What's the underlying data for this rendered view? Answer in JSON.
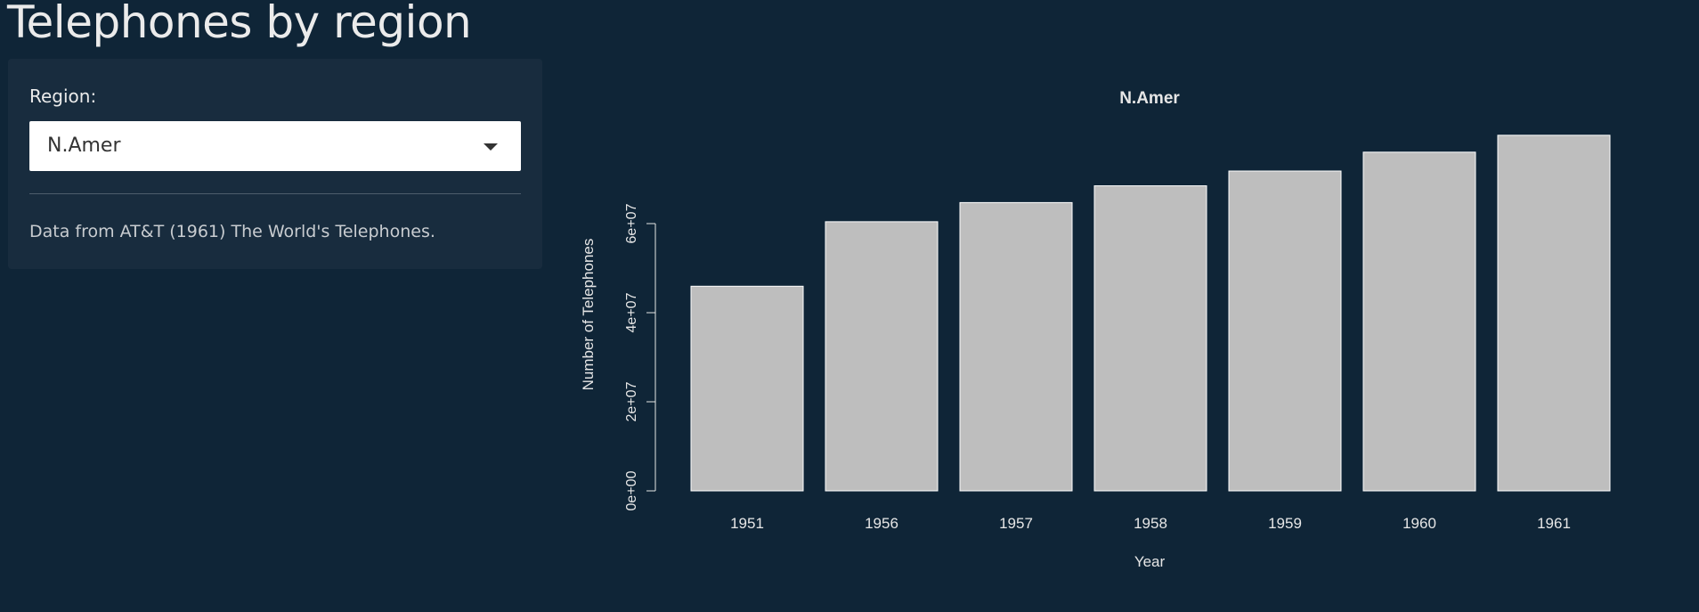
{
  "page": {
    "title": "Telephones by region"
  },
  "sidebar": {
    "region_label": "Region:",
    "selected_region": "N.Amer",
    "help_text": "Data from AT&T (1961) The World's Telephones."
  },
  "chart_data": {
    "type": "bar",
    "title": "N.Amer",
    "xlabel": "Year",
    "ylabel": "Number of Telephones",
    "categories": [
      "1951",
      "1956",
      "1957",
      "1958",
      "1959",
      "1960",
      "1961"
    ],
    "values": [
      45939000,
      60423000,
      64721000,
      68484000,
      71799000,
      76036000,
      79831000
    ],
    "ylim": [
      0,
      80000000
    ],
    "yticks": [
      0,
      20000000,
      40000000,
      60000000
    ],
    "ytick_labels": [
      "0e+00",
      "2e+07",
      "4e+07",
      "6e+07"
    ],
    "bar_color": "#bebebe",
    "grid": false,
    "legend": "none"
  }
}
